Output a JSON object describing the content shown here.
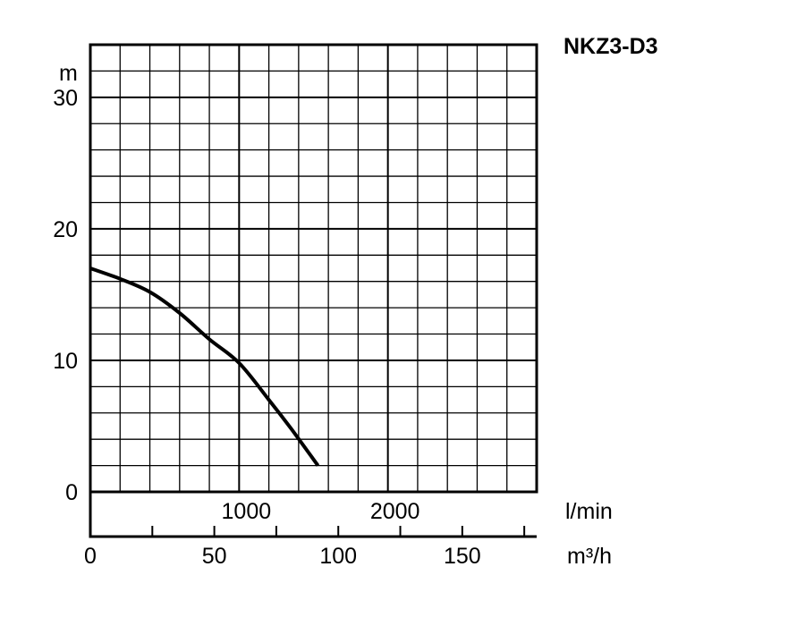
{
  "chart_data": {
    "type": "line",
    "title": "NKZ3-D3",
    "ylabel": "m",
    "xlabel_primary": "l/min",
    "xlabel_secondary": "m³/h",
    "ylim": [
      0,
      34
    ],
    "xlim_lmin": [
      0,
      3000
    ],
    "yticks": [
      {
        "value": 0,
        "label": "0"
      },
      {
        "value": 10,
        "label": "10"
      },
      {
        "value": 20,
        "label": "20"
      },
      {
        "value": 30,
        "label": "30"
      }
    ],
    "xticks_lmin": [
      {
        "value": 1000,
        "label": "1000"
      },
      {
        "value": 2000,
        "label": "2000"
      }
    ],
    "xticks_m3h": [
      {
        "value": 0,
        "label": "0"
      },
      {
        "value": 50,
        "label": "50"
      },
      {
        "value": 100,
        "label": "100"
      },
      {
        "value": 150,
        "label": "150"
      }
    ],
    "grid": true,
    "series": [
      {
        "x": [
          0,
          200,
          400,
          600,
          800,
          1000,
          1200,
          1350,
          1530
        ],
        "y": [
          17,
          16.2,
          15.2,
          13.6,
          11.6,
          9.8,
          7.0,
          4.8,
          2.0
        ]
      }
    ]
  }
}
